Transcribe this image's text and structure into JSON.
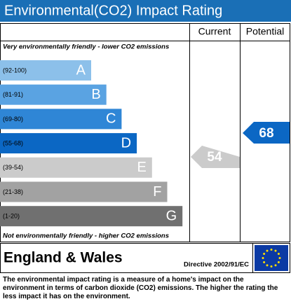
{
  "header": {
    "title": "Environmental(CO2) Impact Rating"
  },
  "columns": {
    "current": "Current",
    "potential": "Potential"
  },
  "top_note": "Very environmentally friendly - lower CO2 emissions",
  "bottom_note": "Not environmentally friendly - higher CO2 emissions",
  "bands": [
    {
      "range": "(92-100)",
      "letter": "A",
      "color": "#8cc0ea"
    },
    {
      "range": "(81-91)",
      "letter": "B",
      "color": "#5aa3e2"
    },
    {
      "range": "(69-80)",
      "letter": "C",
      "color": "#2f86d6"
    },
    {
      "range": "(55-68)",
      "letter": "D",
      "color": "#0b67c4"
    },
    {
      "range": "(39-54)",
      "letter": "E",
      "color": "#cbcbcb"
    },
    {
      "range": "(21-38)",
      "letter": "F",
      "color": "#a2a2a2"
    },
    {
      "range": "(1-20)",
      "letter": "G",
      "color": "#707070"
    }
  ],
  "ratings": {
    "current": 54,
    "potential": 68
  },
  "footer": {
    "region": "England & Wales",
    "directive": "Directive 2002/91/EC"
  },
  "description": "The environmental impact rating is a measure of a home's impact on the environment in terms of carbon dioxide (CO2) emissions. The higher the rating the less impact it has on the environment."
}
